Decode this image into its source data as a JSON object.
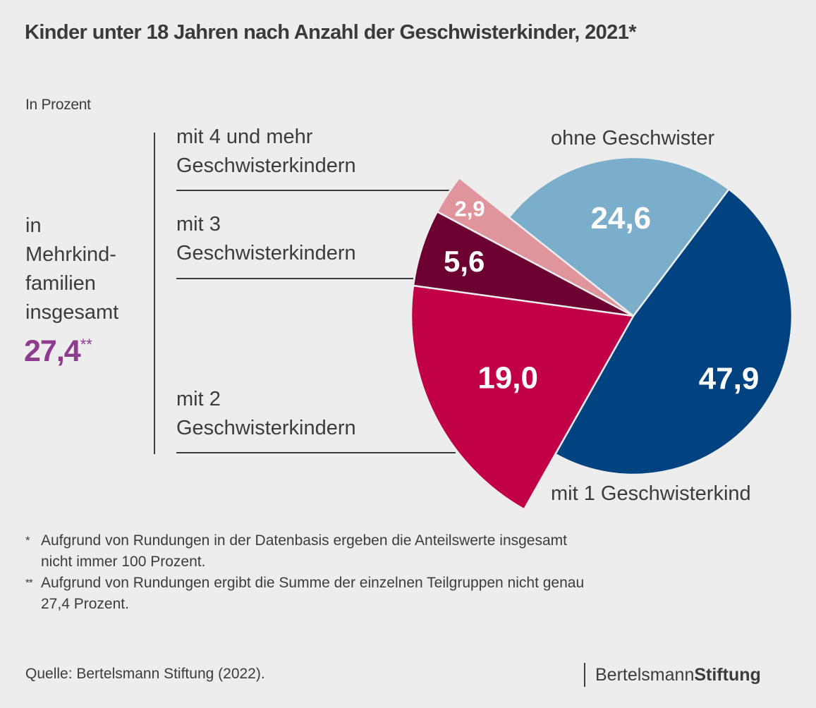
{
  "title": "Kinder unter 18 Jahren nach Anzahl der Geschwisterkinder, 2021*",
  "subtitle": "In Prozent",
  "group_summary": {
    "label_lines": [
      "in",
      "Mehrkind-",
      "familien",
      "insgesamt"
    ],
    "value": "27,4",
    "value_mark": "**"
  },
  "chart_data": {
    "type": "pie",
    "title": "Kinder unter 18 Jahren nach Anzahl der Geschwisterkinder, 2021*",
    "unit": "In Prozent",
    "start_angle_deg": 37,
    "direction": "clockwise",
    "slices": [
      {
        "key": "one",
        "label": "mit 1 Geschwisterkind",
        "value": 47.9,
        "display": "47,9",
        "color": "#004380",
        "exploded": false
      },
      {
        "key": "two",
        "label": "mit 2 Geschwisterkindern",
        "value": 19.0,
        "display": "19,0",
        "color": "#c20048",
        "exploded": true
      },
      {
        "key": "three",
        "label": "mit 3 Geschwisterkindern",
        "value": 5.6,
        "display": "5,6",
        "color": "#6c0030",
        "exploded": true
      },
      {
        "key": "four",
        "label": "mit 4 und mehr Geschwisterkindern",
        "value": 2.9,
        "display": "2,9",
        "color": "#e0949b",
        "exploded": true
      },
      {
        "key": "none",
        "label": "ohne Geschwister",
        "value": 24.6,
        "display": "24,6",
        "color": "#7aaecb",
        "exploded": false
      }
    ],
    "group": {
      "label": "in Mehrkindfamilien insgesamt",
      "value": 27.4,
      "members": [
        "two",
        "three",
        "four"
      ]
    }
  },
  "labels": {
    "four": [
      "mit 4 und mehr",
      "Geschwisterkindern"
    ],
    "three": [
      "mit 3",
      "Geschwisterkindern"
    ],
    "two": [
      "mit 2",
      "Geschwisterkindern"
    ],
    "none": "ohne Geschwister",
    "one": "mit 1 Geschwisterkind"
  },
  "notes": [
    {
      "mark": "*",
      "lines": [
        "Aufgrund von Rundungen in der Datenbasis ergeben die Anteilswerte insgesamt",
        "nicht immer 100 Prozent."
      ]
    },
    {
      "mark": "**",
      "lines": [
        "Aufgrund von Rundungen ergibt die Summe der einzelnen Teilgruppen nicht genau",
        "27,4 Prozent."
      ]
    }
  ],
  "source": "Quelle: Bertelsmann Stiftung (2022).",
  "logo": {
    "light": "Bertelsmann",
    "bold": "Stiftung"
  }
}
